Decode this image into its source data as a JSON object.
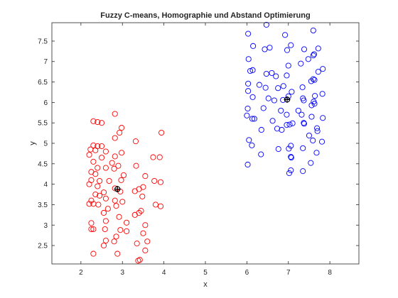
{
  "chart_data": {
    "type": "scatter",
    "title": "Fuzzy C-means, Homographie und Abstand Optimierung",
    "xlabel": "x",
    "ylabel": "y",
    "xlim": [
      1.3,
      8.7
    ],
    "ylim": [
      2.05,
      7.95
    ],
    "xticks": [
      "2",
      "3",
      "4",
      "5",
      "6",
      "7",
      "8"
    ],
    "yticks": [
      "2.5",
      "3",
      "3.5",
      "4",
      "4.5",
      "5",
      "5.5",
      "6",
      "6.5",
      "7",
      "7.5"
    ],
    "grid": false,
    "box": true,
    "series": [
      {
        "color": "#ff0000",
        "marker": "circle",
        "points": [
          [
            2.3,
            5.54
          ],
          [
            2.4,
            5.52
          ],
          [
            2.5,
            5.5
          ],
          [
            2.82,
            5.72
          ],
          [
            2.98,
            5.38
          ],
          [
            2.93,
            5.26
          ],
          [
            3.94,
            5.26
          ],
          [
            2.82,
            5.13
          ],
          [
            3.32,
            5.05
          ],
          [
            2.3,
            4.95
          ],
          [
            2.4,
            4.93
          ],
          [
            2.5,
            4.93
          ],
          [
            2.23,
            4.85
          ],
          [
            2.35,
            4.83
          ],
          [
            2.6,
            4.8
          ],
          [
            2.98,
            4.77
          ],
          [
            2.2,
            4.72
          ],
          [
            2.5,
            4.65
          ],
          [
            2.82,
            4.68
          ],
          [
            3.74,
            4.66
          ],
          [
            3.9,
            4.66
          ],
          [
            2.3,
            4.55
          ],
          [
            2.75,
            4.52
          ],
          [
            2.9,
            4.45
          ],
          [
            3.33,
            4.45
          ],
          [
            2.4,
            4.4
          ],
          [
            2.6,
            4.4
          ],
          [
            2.8,
            4.38
          ],
          [
            2.25,
            4.3
          ],
          [
            2.35,
            4.25
          ],
          [
            3.03,
            4.22
          ],
          [
            3.55,
            4.2
          ],
          [
            2.25,
            4.1
          ],
          [
            2.45,
            4.08
          ],
          [
            2.68,
            4.08
          ],
          [
            2.97,
            4.1
          ],
          [
            3.77,
            4.08
          ],
          [
            3.92,
            4.05
          ],
          [
            2.2,
            4.0
          ],
          [
            2.4,
            3.95
          ],
          [
            2.82,
            3.9
          ],
          [
            3.5,
            3.93
          ],
          [
            3.4,
            3.88
          ],
          [
            2.55,
            3.8
          ],
          [
            2.95,
            3.82
          ],
          [
            3.3,
            3.83
          ],
          [
            2.35,
            3.75
          ],
          [
            2.45,
            3.72
          ],
          [
            2.25,
            3.6
          ],
          [
            2.6,
            3.65
          ],
          [
            2.82,
            3.6
          ],
          [
            3.0,
            3.57
          ],
          [
            3.48,
            3.7
          ],
          [
            2.2,
            3.52
          ],
          [
            2.3,
            3.52
          ],
          [
            2.42,
            3.5
          ],
          [
            3.8,
            3.5
          ],
          [
            3.92,
            3.46
          ],
          [
            2.65,
            3.4
          ],
          [
            2.85,
            3.47
          ],
          [
            3.45,
            3.35
          ],
          [
            2.55,
            3.3
          ],
          [
            3.4,
            3.3
          ],
          [
            3.3,
            3.25
          ],
          [
            2.92,
            3.2
          ],
          [
            2.25,
            3.05
          ],
          [
            2.6,
            3.1
          ],
          [
            3.1,
            3.06
          ],
          [
            3.55,
            3.0
          ],
          [
            2.25,
            2.9
          ],
          [
            2.3,
            2.9
          ],
          [
            2.58,
            2.9
          ],
          [
            2.95,
            2.88
          ],
          [
            3.1,
            2.85
          ],
          [
            3.5,
            2.8
          ],
          [
            2.85,
            2.72
          ],
          [
            2.6,
            2.62
          ],
          [
            2.8,
            2.6
          ],
          [
            3.6,
            2.6
          ],
          [
            3.35,
            2.55
          ],
          [
            2.55,
            2.5
          ],
          [
            3.55,
            2.38
          ],
          [
            2.3,
            2.3
          ],
          [
            2.88,
            2.3
          ],
          [
            3.42,
            2.15
          ],
          [
            3.38,
            2.13
          ]
        ]
      },
      {
        "color": "#0000ff",
        "marker": "circle",
        "points": [
          [
            6.47,
            7.9
          ],
          [
            7.6,
            7.76
          ],
          [
            6.03,
            7.68
          ],
          [
            6.92,
            7.65
          ],
          [
            6.15,
            7.38
          ],
          [
            6.55,
            7.34
          ],
          [
            6.43,
            7.3
          ],
          [
            7.38,
            7.3
          ],
          [
            7.72,
            7.32
          ],
          [
            7.62,
            7.18
          ],
          [
            7.6,
            7.15
          ],
          [
            6.97,
            7.28
          ],
          [
            7.06,
            7.4
          ],
          [
            6.04,
            7.06
          ],
          [
            7.48,
            7.06
          ],
          [
            7.0,
            6.9
          ],
          [
            7.3,
            6.95
          ],
          [
            7.83,
            6.82
          ],
          [
            6.14,
            6.79
          ],
          [
            6.08,
            6.77
          ],
          [
            7.72,
            6.75
          ],
          [
            6.47,
            6.7
          ],
          [
            6.6,
            6.72
          ],
          [
            6.96,
            6.66
          ],
          [
            6.7,
            6.64
          ],
          [
            7.6,
            6.57
          ],
          [
            7.63,
            6.55
          ],
          [
            7.55,
            6.52
          ],
          [
            6.03,
            6.46
          ],
          [
            6.3,
            6.43
          ],
          [
            6.88,
            6.4
          ],
          [
            6.45,
            6.36
          ],
          [
            6.75,
            6.35
          ],
          [
            7.34,
            6.37
          ],
          [
            6.03,
            6.28
          ],
          [
            7.08,
            6.26
          ],
          [
            7.82,
            6.21
          ],
          [
            7.64,
            6.16
          ],
          [
            6.14,
            6.13
          ],
          [
            6.52,
            6.1
          ],
          [
            7.0,
            6.15
          ],
          [
            7.35,
            6.1
          ],
          [
            6.66,
            6.05
          ],
          [
            6.87,
            6.06
          ],
          [
            7.61,
            6.02
          ],
          [
            7.37,
            6.05
          ],
          [
            7.63,
            5.97
          ],
          [
            7.56,
            5.93
          ],
          [
            6.02,
            5.85
          ],
          [
            6.4,
            5.86
          ],
          [
            6.82,
            5.8
          ],
          [
            7.24,
            5.8
          ],
          [
            6.96,
            5.7
          ],
          [
            7.32,
            5.7
          ],
          [
            7.56,
            5.65
          ],
          [
            6.0,
            5.68
          ],
          [
            6.13,
            5.6
          ],
          [
            6.18,
            5.6
          ],
          [
            6.62,
            5.55
          ],
          [
            7.83,
            5.62
          ],
          [
            7.1,
            5.49
          ],
          [
            7.37,
            5.5
          ],
          [
            7.38,
            5.48
          ],
          [
            6.96,
            5.45
          ],
          [
            7.03,
            5.46
          ],
          [
            6.35,
            5.33
          ],
          [
            6.73,
            5.36
          ],
          [
            7.69,
            5.37
          ],
          [
            7.7,
            5.3
          ],
          [
            6.84,
            5.33
          ],
          [
            7.5,
            5.19
          ],
          [
            6.05,
            5.08
          ],
          [
            7.59,
            5.07
          ],
          [
            7.81,
            5.04
          ],
          [
            6.12,
            4.95
          ],
          [
            7.06,
            4.94
          ],
          [
            6.76,
            4.86
          ],
          [
            7.01,
            4.87
          ],
          [
            7.35,
            4.88
          ],
          [
            7.68,
            4.77
          ],
          [
            6.34,
            4.73
          ],
          [
            7.06,
            4.67
          ],
          [
            7.07,
            4.65
          ],
          [
            7.54,
            4.52
          ],
          [
            6.02,
            4.48
          ],
          [
            7.06,
            4.34
          ],
          [
            7.35,
            4.32
          ],
          [
            7.02,
            4.27
          ]
        ]
      }
    ],
    "centers": [
      {
        "x": 2.88,
        "y": 3.88,
        "color": "#000000",
        "marker": "circle-plus"
      },
      {
        "x": 6.97,
        "y": 6.07,
        "color": "#000000",
        "marker": "circle-plus"
      }
    ]
  }
}
